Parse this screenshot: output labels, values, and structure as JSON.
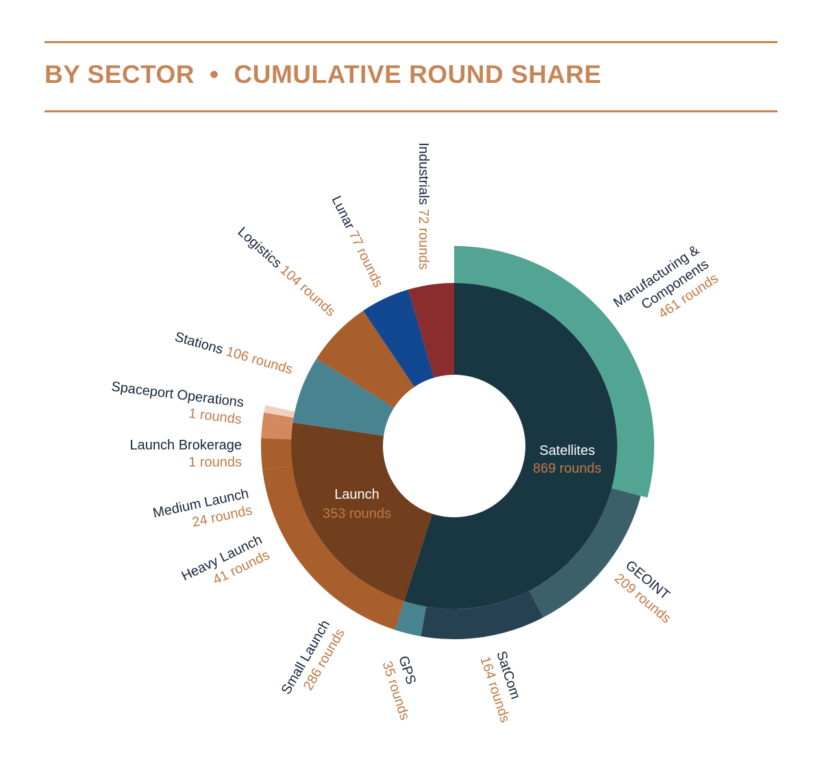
{
  "header": {
    "title_left": "BY SECTOR",
    "separator": "•",
    "title_right": "CUMULATIVE ROUND SHARE"
  },
  "colors": {
    "accent": "#c58556",
    "label_dark": "#16243a",
    "label_value": "#c07a47"
  },
  "chart_data": {
    "type": "sunburst",
    "title": "BY SECTOR • CUMULATIVE ROUND SHARE",
    "unit": "rounds",
    "sectors": [
      {
        "name": "Satellites",
        "value": 869,
        "value_label": "869 rounds",
        "color": "#193643",
        "children": [
          {
            "name": "Manufacturing & Components",
            "value": 461,
            "value_label": "461 rounds",
            "color": "#52a593"
          },
          {
            "name": "GEOINT",
            "value": 209,
            "value_label": "209 rounds",
            "color": "#3c606a"
          },
          {
            "name": "SatCom",
            "value": 164,
            "value_label": "164 rounds",
            "color": "#264151"
          },
          {
            "name": "GPS",
            "value": 35,
            "value_label": "35 rounds",
            "color": "#4a8390"
          }
        ]
      },
      {
        "name": "Launch",
        "value": 353,
        "value_label": "353 rounds",
        "color": "#713e1e",
        "children": [
          {
            "name": "Small Launch",
            "value": 286,
            "value_label": "286 rounds",
            "color": "#a95f2c"
          },
          {
            "name": "Heavy Launch",
            "value": 41,
            "value_label": "41  rounds",
            "color": "#a95f2c"
          },
          {
            "name": "Medium Launch",
            "value": 24,
            "value_label": "24  rounds",
            "color": "#d4885d"
          },
          {
            "name": "Launch Brokerage",
            "value": 1,
            "value_label": "1 rounds",
            "color": "#d4885d"
          },
          {
            "name": "Spaceport Operations",
            "value": 1,
            "value_label": "1 rounds",
            "color": "#f1d1bd"
          }
        ]
      },
      {
        "name": "Stations",
        "value": 106,
        "value_label": "106 rounds",
        "color": "#4a8390",
        "children": []
      },
      {
        "name": "Logistics",
        "value": 104,
        "value_label": "104 rounds",
        "color": "#a95f2c",
        "children": []
      },
      {
        "name": "Lunar",
        "value": 77,
        "value_label": "77 rounds",
        "color": "#124891",
        "children": []
      },
      {
        "name": "Industrials",
        "value": 72,
        "value_label": "72 rounds",
        "color": "#8b2d2e",
        "children": []
      }
    ]
  }
}
